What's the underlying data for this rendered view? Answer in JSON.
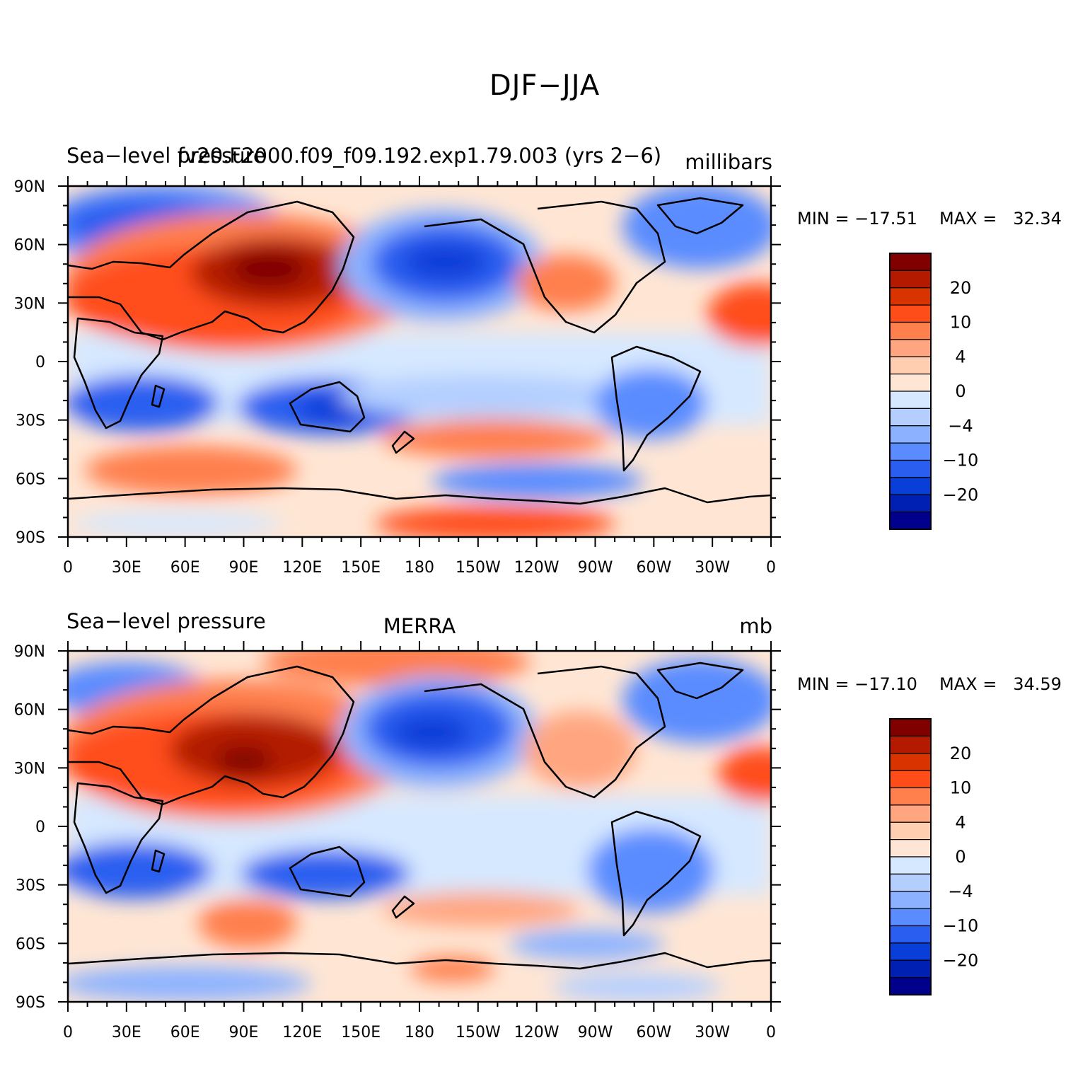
{
  "title": "DJF−JJA",
  "colors": {
    "levels": [
      "#800000",
      "#b31a00",
      "#d93300",
      "#ff4d1a",
      "#ff7f4d",
      "#ffa680",
      "#ffcdb0",
      "#ffe6d4",
      "#d6e8ff",
      "#b4cfff",
      "#8cb2ff",
      "#5a8cff",
      "#2a5ef0",
      "#0a3ed8",
      "#0020b4",
      "#00008c"
    ]
  },
  "colorbar_labels": [
    "20",
    "10",
    "4",
    "0",
    "−4",
    "−10",
    "−20"
  ],
  "x_ticks": [
    "0",
    "30E",
    "60E",
    "90E",
    "120E",
    "150E",
    "180",
    "150W",
    "120W",
    "90W",
    "60W",
    "30W",
    "0"
  ],
  "y_ticks": [
    "90N",
    "60N",
    "30N",
    "0",
    "30S",
    "60S",
    "90S"
  ],
  "panels": [
    {
      "left_title": "Sea−level pressure",
      "center_title": "fv20.F2000.f09_f09.192.exp1.79.003 (yrs 2−6)",
      "right_title": "millibars",
      "min_label": "MIN = −17.51",
      "max_label": "MAX =   32.34"
    },
    {
      "left_title": "Sea−level pressure",
      "center_title": "MERRA",
      "right_title": "mb",
      "min_label": "MIN = −17.10",
      "max_label": "MAX =   34.59"
    }
  ]
}
